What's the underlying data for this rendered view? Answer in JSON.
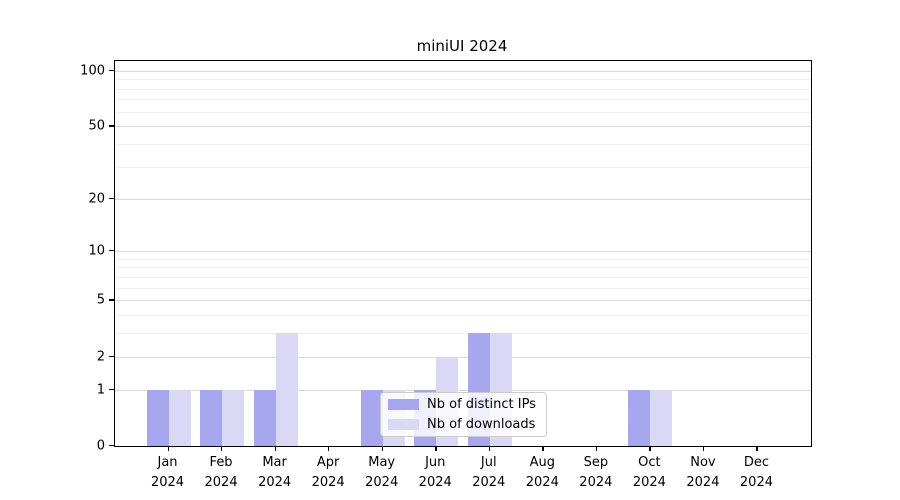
{
  "title": "miniUI 2024",
  "colors": {
    "distinct_ips": "#a7a7f0",
    "downloads": "#d9d9f6",
    "grid_major": "#dadada",
    "grid_minor": "#f0f0f0",
    "axis": "#000000",
    "legend_border": "#cccccc"
  },
  "legend": {
    "items": [
      {
        "label": "Nb of distinct IPs",
        "series": "distinct_ips"
      },
      {
        "label": "Nb of downloads",
        "series": "downloads"
      }
    ]
  },
  "chart_data": {
    "type": "bar",
    "title": "miniUI 2024",
    "categories": [
      "Jan 2024",
      "Feb 2024",
      "Mar 2024",
      "Apr 2024",
      "May 2024",
      "Jun 2024",
      "Jul 2024",
      "Aug 2024",
      "Sep 2024",
      "Oct 2024",
      "Nov 2024",
      "Dec 2024"
    ],
    "x_tick_line1": [
      "Jan",
      "Feb",
      "Mar",
      "Apr",
      "May",
      "Jun",
      "Jul",
      "Aug",
      "Sep",
      "Oct",
      "Nov",
      "Dec"
    ],
    "x_tick_line2": [
      "2024",
      "2024",
      "2024",
      "2024",
      "2024",
      "2024",
      "2024",
      "2024",
      "2024",
      "2024",
      "2024",
      "2024"
    ],
    "series": [
      {
        "name": "Nb of distinct IPs",
        "color": "#a7a7f0",
        "values": [
          1,
          1,
          1,
          0,
          1,
          1,
          3,
          0,
          0,
          1,
          0,
          0
        ]
      },
      {
        "name": "Nb of downloads",
        "color": "#d9d9f6",
        "values": [
          1,
          1,
          3,
          0,
          1,
          2,
          3,
          0,
          0,
          1,
          0,
          0
        ]
      }
    ],
    "xlabel": "",
    "ylabel": "",
    "y_scale": "log1p",
    "ylim": [
      0,
      113
    ],
    "y_ticks": [
      0,
      1,
      2,
      5,
      10,
      20,
      50,
      100
    ],
    "y_minor_gridlines": [
      3,
      4,
      6,
      7,
      8,
      9,
      30,
      40,
      60,
      70,
      80,
      90
    ],
    "grid": "on",
    "legend_position": "lower-center-inside"
  }
}
